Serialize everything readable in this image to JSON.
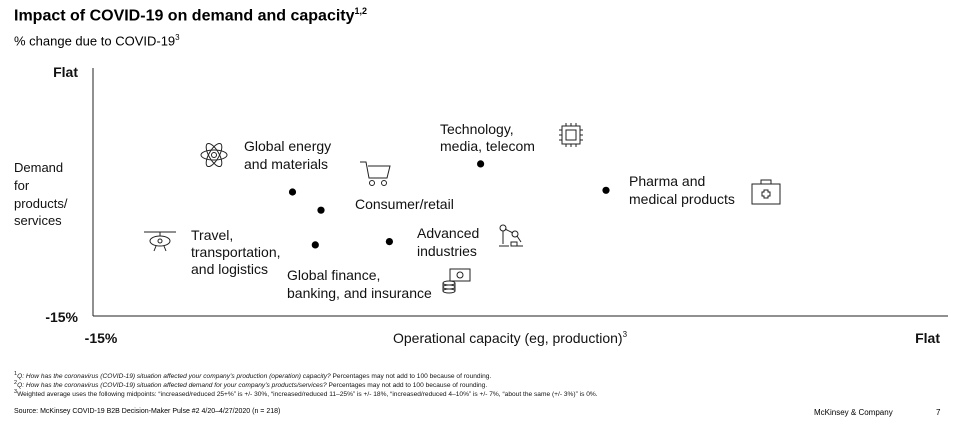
{
  "header": {
    "title": "Impact of COVID-19 on demand and capacity",
    "title_sup": "1,2",
    "subtitle": "% change due to COVID-19",
    "subtitle_sup": "3"
  },
  "chart_data": {
    "type": "scatter",
    "xlabel": "Operational capacity (eg, production)",
    "xlabel_sup": "3",
    "ylabel": [
      "Demand",
      "for",
      "products/",
      "services"
    ],
    "x_ticks": {
      "min": "-15%",
      "max": "Flat"
    },
    "y_ticks": {
      "min": "-15%",
      "max": "Flat"
    },
    "xlim": [
      -15,
      0
    ],
    "ylim": [
      -15,
      0
    ],
    "points": [
      {
        "id": "energy",
        "lines": [
          "Global energy",
          "and materials"
        ],
        "x": -11.5,
        "y": -7.5,
        "icon": "atom-icon"
      },
      {
        "id": "consumer",
        "lines": [
          "Consumer/retail"
        ],
        "x": -11.0,
        "y": -8.6,
        "icon": "shopping-cart-icon"
      },
      {
        "id": "tech",
        "lines": [
          "Technology,",
          "media, telecom"
        ],
        "x": -8.2,
        "y": -5.8,
        "icon": "microchip-icon"
      },
      {
        "id": "pharma",
        "lines": [
          "Pharma and",
          "medical products"
        ],
        "x": -6.0,
        "y": -7.4,
        "icon": "medical-kit-icon"
      },
      {
        "id": "advanced",
        "lines": [
          "Advanced",
          "industries"
        ],
        "x": -9.8,
        "y": -10.5,
        "icon": "robot-arm-icon"
      },
      {
        "id": "finance",
        "lines": [
          "Global finance,",
          "banking, and insurance"
        ],
        "x": -11.1,
        "y": -10.7,
        "icon": "money-coins-icon"
      },
      {
        "id": "travel",
        "lines": [
          "Travel,",
          "transportation,",
          "and logistics"
        ],
        "x": null,
        "y": null,
        "icon": "airplane-icon"
      }
    ]
  },
  "footnotes": {
    "fn1_num": "1",
    "fn1": "Q: How has the coronavirus (COVID-19) situation affected your company’s production (operation) capacity?",
    "fn1_rest": " Percentages may not add to 100 because of rounding.",
    "fn2_num": "2",
    "fn2": "Q: How has the coronavirus (COVID-19) situation affected demand for your company’s products/services?",
    "fn2_rest": " Percentages may not add to 100 because of rounding.",
    "fn3_num": "3",
    "fn3": "Weighted average uses the following midpoints: “increased/reduced 25+%” is +/- 30%, “increased/reduced 11–25%” is +/- 18%, “increased/reduced 4–10%” is +/- 7%, “about the same (+/- 3%)” is 0%."
  },
  "source": "Source: McKinsey COVID-19 B2B Decision-Maker Pulse #2 4/20–4/27/2020 (n = 218)",
  "brand": "McKinsey & Company",
  "page_number": "7"
}
